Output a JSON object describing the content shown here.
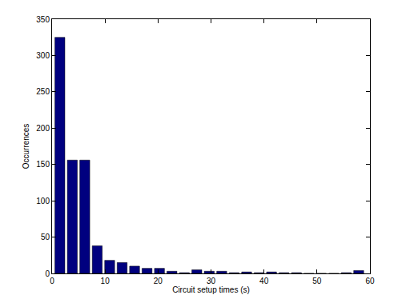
{
  "chart_data": {
    "type": "histogram",
    "x_label": "Circuit setup times (s)",
    "y_label": "Occurrences",
    "bins": [
      0.3,
      2.65,
      5,
      7.35,
      9.7,
      12.05,
      14.4,
      16.75,
      19.1,
      21.45,
      23.8,
      26.15,
      28.5,
      30.85,
      33.2,
      35.55,
      37.9,
      40.25,
      42.6,
      44.95,
      47.3,
      49.65,
      52,
      54.35,
      56.7,
      59.05
    ],
    "values": [
      325,
      156,
      156,
      38,
      18,
      15,
      10,
      7,
      7,
      3,
      1,
      5,
      3,
      3,
      1,
      2,
      1,
      2,
      1,
      1,
      0,
      0,
      0,
      1,
      4
    ],
    "color": "#00007f",
    "xlim": [
      0,
      60
    ],
    "xticks": [
      0,
      10,
      20,
      30,
      40,
      50,
      60
    ],
    "ylim": [
      0,
      350
    ],
    "yticks": [
      0,
      50,
      100,
      150,
      200,
      250,
      300,
      350
    ],
    "grid": false
  }
}
